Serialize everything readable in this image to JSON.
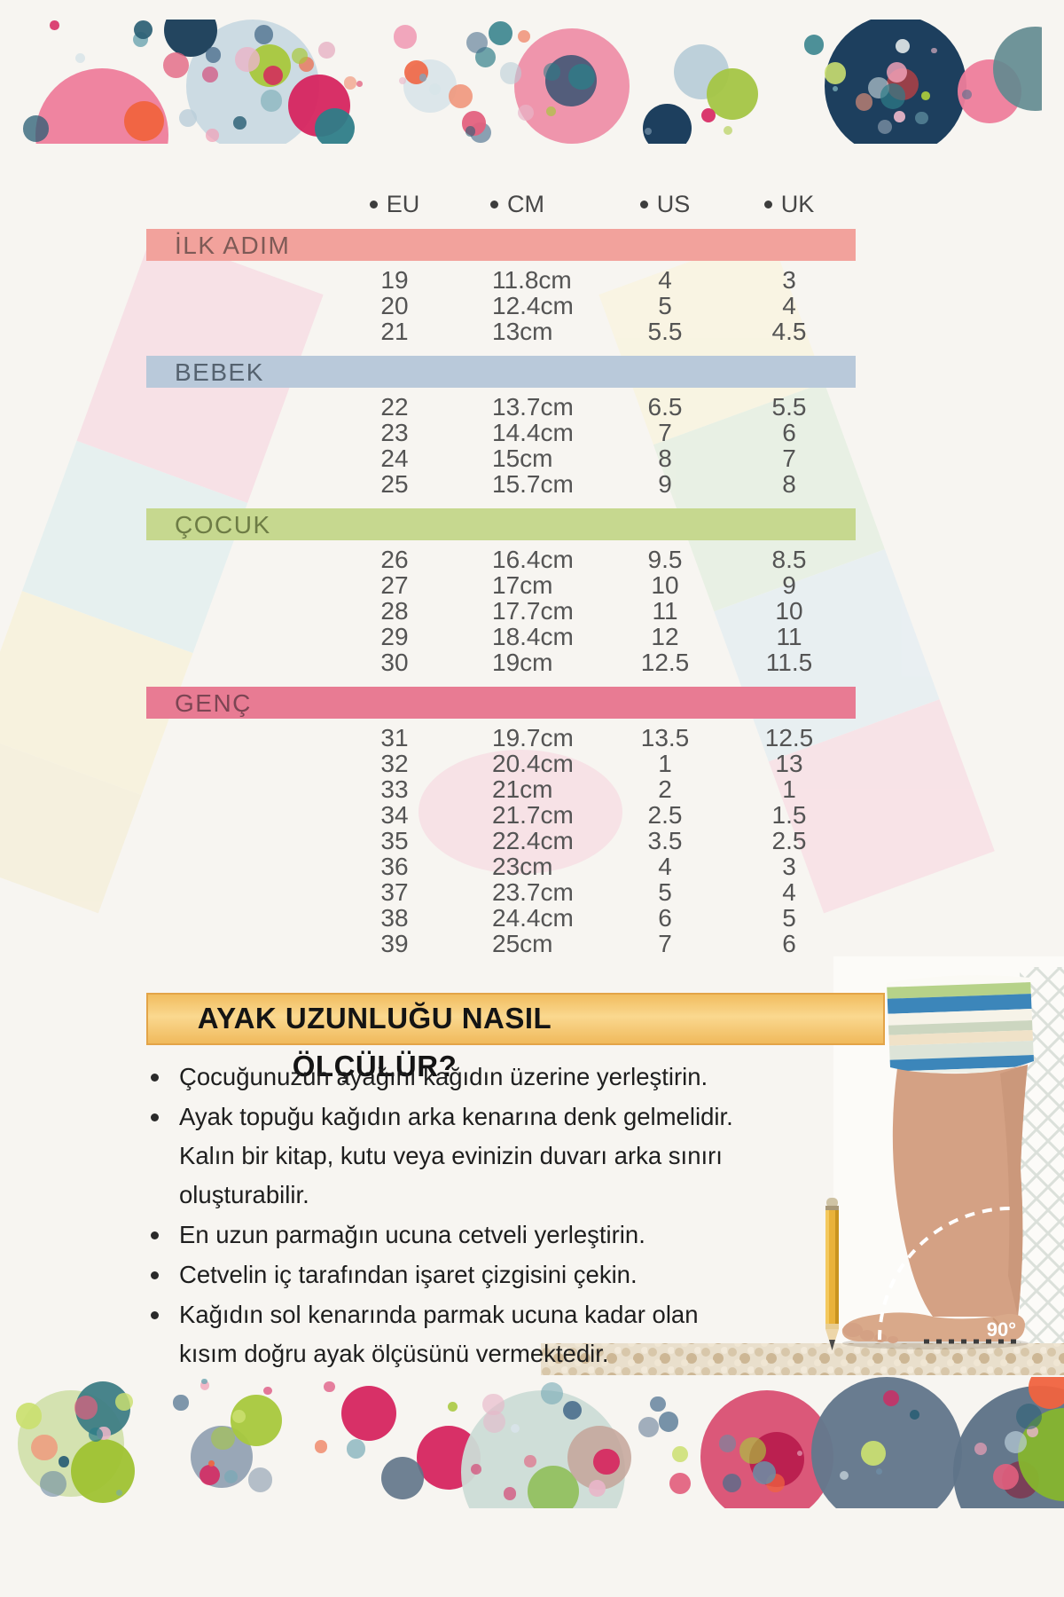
{
  "table": {
    "columns": [
      "EU",
      "CM",
      "US",
      "UK"
    ],
    "sections": [
      {
        "label": "İLK ADIM",
        "bar_color": "#f2a29c",
        "label_color": "#7d5a56",
        "rows": [
          [
            "19",
            "11.8cm",
            "4",
            "3"
          ],
          [
            "20",
            "12.4cm",
            "5",
            "4"
          ],
          [
            "21",
            "13cm",
            "5.5",
            "4.5"
          ]
        ]
      },
      {
        "label": "BEBEK",
        "bar_color": "#b9c9da",
        "label_color": "#55626f",
        "rows": [
          [
            "22",
            "13.7cm",
            "6.5",
            "5.5"
          ],
          [
            "23",
            "14.4cm",
            "7",
            "6"
          ],
          [
            "24",
            "15cm",
            "8",
            "7"
          ],
          [
            "25",
            "15.7cm",
            "9",
            "8"
          ]
        ]
      },
      {
        "label": "ÇOCUK",
        "bar_color": "#c6d88f",
        "label_color": "#6d7c45",
        "rows": [
          [
            "26",
            "16.4cm",
            "9.5",
            "8.5"
          ],
          [
            "27",
            "17cm",
            "10",
            "9"
          ],
          [
            "28",
            "17.7cm",
            "11",
            "10"
          ],
          [
            "29",
            "18.4cm",
            "12",
            "11"
          ],
          [
            "30",
            "19cm",
            "12.5",
            "11.5"
          ]
        ]
      },
      {
        "label": "GENÇ",
        "bar_color": "#e87b93",
        "label_color": "#7c4553",
        "rows": [
          [
            "31",
            "19.7cm",
            "13.5",
            "12.5"
          ],
          [
            "32",
            "20.4cm",
            "1",
            "13"
          ],
          [
            "33",
            "21cm",
            "2",
            "1"
          ],
          [
            "34",
            "21.7cm",
            "2.5",
            "1.5"
          ],
          [
            "35",
            "22.4cm",
            "3.5",
            "2.5"
          ],
          [
            "36",
            "23cm",
            "4",
            "3"
          ],
          [
            "37",
            "23.7cm",
            "5",
            "4"
          ],
          [
            "38",
            "24.4cm",
            "6",
            "5"
          ],
          [
            "39",
            "25cm",
            "7",
            "6"
          ]
        ]
      }
    ]
  },
  "howto": {
    "title": "AYAK UZUNLUĞU NASIL ÖLÇÜLÜR?",
    "title_bg": "#f8cf7e",
    "bullets": [
      "Çocuğunuzun ayağını kağıdın üzerine yerleştirin.",
      "Ayak topuğu kağıdın arka kenarına denk gelmelidir. Kalın bir kitap, kutu veya evinizin duvarı arka sınırı oluşturabilir.",
      "En uzun parmağın ucuna cetveli yerleştirin.",
      "Cetvelin iç tarafından işaret çizgisini çekin.",
      "Kağıdın sol kenarında parmak ucuna kadar olan kısım doğru ayak ölçüsünü vermektedir."
    ]
  },
  "photo": {
    "angle_label": "90°"
  }
}
